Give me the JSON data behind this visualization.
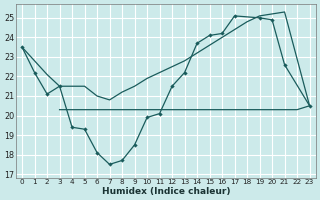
{
  "background_color": "#cceaea",
  "grid_color": "#b0d8d8",
  "line_color": "#1a5c5c",
  "xlabel": "Humidex (Indice chaleur)",
  "xlim": [
    -0.5,
    23.5
  ],
  "ylim": [
    16.8,
    25.7
  ],
  "yticks": [
    17,
    18,
    19,
    20,
    21,
    22,
    23,
    24,
    25
  ],
  "xticks": [
    0,
    1,
    2,
    3,
    4,
    5,
    6,
    7,
    8,
    9,
    10,
    11,
    12,
    13,
    14,
    15,
    16,
    17,
    18,
    19,
    20,
    21,
    22,
    23
  ],
  "line_main_x": [
    0,
    1,
    2,
    3,
    4,
    5,
    6,
    7,
    8,
    9,
    10,
    11,
    12,
    13,
    14,
    15,
    16,
    17,
    19,
    20,
    21,
    23
  ],
  "line_main_y": [
    23.5,
    22.2,
    21.1,
    21.5,
    19.4,
    19.3,
    18.1,
    17.5,
    17.7,
    18.5,
    19.9,
    20.1,
    21.5,
    22.2,
    23.7,
    24.1,
    24.2,
    25.1,
    25.0,
    24.9,
    22.6,
    20.5
  ],
  "line_trend_x": [
    0,
    1,
    2,
    3,
    4,
    5,
    6,
    7,
    8,
    9,
    10,
    11,
    12,
    13,
    14,
    15,
    16,
    17,
    18,
    19,
    20,
    21,
    23
  ],
  "line_trend_y": [
    23.5,
    22.8,
    22.1,
    21.5,
    21.5,
    21.5,
    21.0,
    20.8,
    21.2,
    21.5,
    21.9,
    22.2,
    22.5,
    22.8,
    23.2,
    23.6,
    24.0,
    24.4,
    24.8,
    25.1,
    25.2,
    25.3,
    20.5
  ],
  "line_flat_x": [
    3,
    4,
    5,
    6,
    7,
    8,
    9,
    10,
    11,
    12,
    13,
    14,
    15,
    16,
    17,
    18,
    19,
    20,
    21,
    22,
    23
  ],
  "line_flat_y": [
    20.3,
    20.3,
    20.3,
    20.3,
    20.3,
    20.3,
    20.3,
    20.3,
    20.3,
    20.3,
    20.3,
    20.3,
    20.3,
    20.3,
    20.3,
    20.3,
    20.3,
    20.3,
    20.3,
    20.3,
    20.5
  ]
}
